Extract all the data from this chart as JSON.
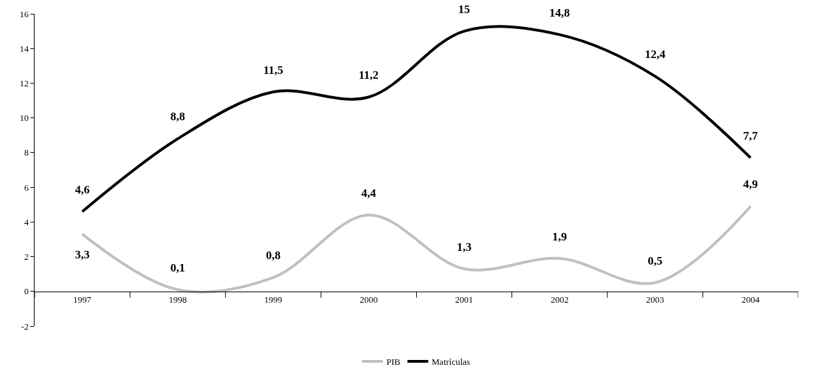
{
  "chart_data": {
    "type": "line",
    "categories": [
      "1997",
      "1998",
      "1999",
      "2000",
      "2001",
      "2002",
      "2003",
      "2004"
    ],
    "series": [
      {
        "name": "PIB",
        "color": "#c0c0c0",
        "values": [
          3.3,
          0.1,
          0.8,
          4.4,
          1.3,
          1.9,
          0.5,
          4.9
        ],
        "value_labels": [
          "3,3",
          "0,1",
          "0,8",
          "4,4",
          "1,3",
          "1,9",
          "0,5",
          "4,9"
        ]
      },
      {
        "name": "Matrículas",
        "color": "#000000",
        "values": [
          4.6,
          8.8,
          11.5,
          11.2,
          15,
          14.8,
          12.4,
          7.7
        ],
        "value_labels": [
          "4,6",
          "8,8",
          "11,5",
          "11,2",
          "15",
          "14,8",
          "12,4",
          "7,7"
        ]
      }
    ],
    "ylim": [
      -2,
      16
    ],
    "yticks": [
      -2,
      0,
      2,
      4,
      6,
      8,
      10,
      12,
      14,
      16
    ],
    "legend": "bottom",
    "marker": "none",
    "line_style": "solid"
  }
}
